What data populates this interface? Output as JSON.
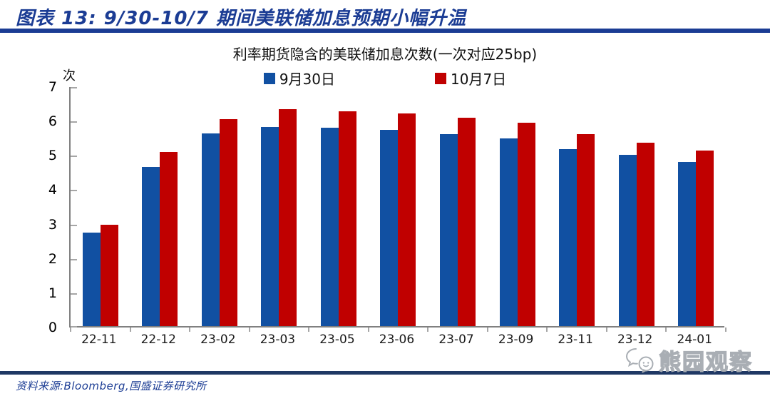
{
  "header": {
    "title": "图表 13: 9/30-10/7 期间美联储加息预期小幅升温"
  },
  "chart_data": {
    "type": "bar",
    "title": "利率期货隐含的美联储加息次数(一次对应25bp)",
    "unit_label": "次",
    "categories": [
      "22-11",
      "22-12",
      "23-02",
      "23-03",
      "23-05",
      "23-06",
      "23-07",
      "23-09",
      "23-11",
      "23-12",
      "24-01"
    ],
    "series": [
      {
        "name": "9月30日",
        "color": "#1150A2",
        "values": [
          2.72,
          4.63,
          5.61,
          5.8,
          5.77,
          5.72,
          5.58,
          5.47,
          5.15,
          4.98,
          4.78
        ]
      },
      {
        "name": "10月7日",
        "color": "#C00000",
        "values": [
          2.95,
          5.06,
          6.03,
          6.31,
          6.26,
          6.18,
          6.06,
          5.93,
          5.58,
          5.34,
          5.12
        ]
      }
    ],
    "ylim": [
      0,
      7
    ],
    "yticks": [
      0,
      1,
      2,
      3,
      4,
      5,
      6,
      7
    ],
    "xlabel": "",
    "ylabel": "次",
    "grid": false,
    "legend_position": "top"
  },
  "footer": {
    "text": "资料来源:Bloomberg,国盛证券研究所"
  },
  "watermark": {
    "text": "熊园观察"
  },
  "colors": {
    "title_navy": "#1B3C94",
    "divider_navy": "#1F3864",
    "bar_blue": "#1150A2",
    "bar_red": "#C00000",
    "axis_gray": "#808080",
    "watermark_gray": "#A9AEB4"
  }
}
